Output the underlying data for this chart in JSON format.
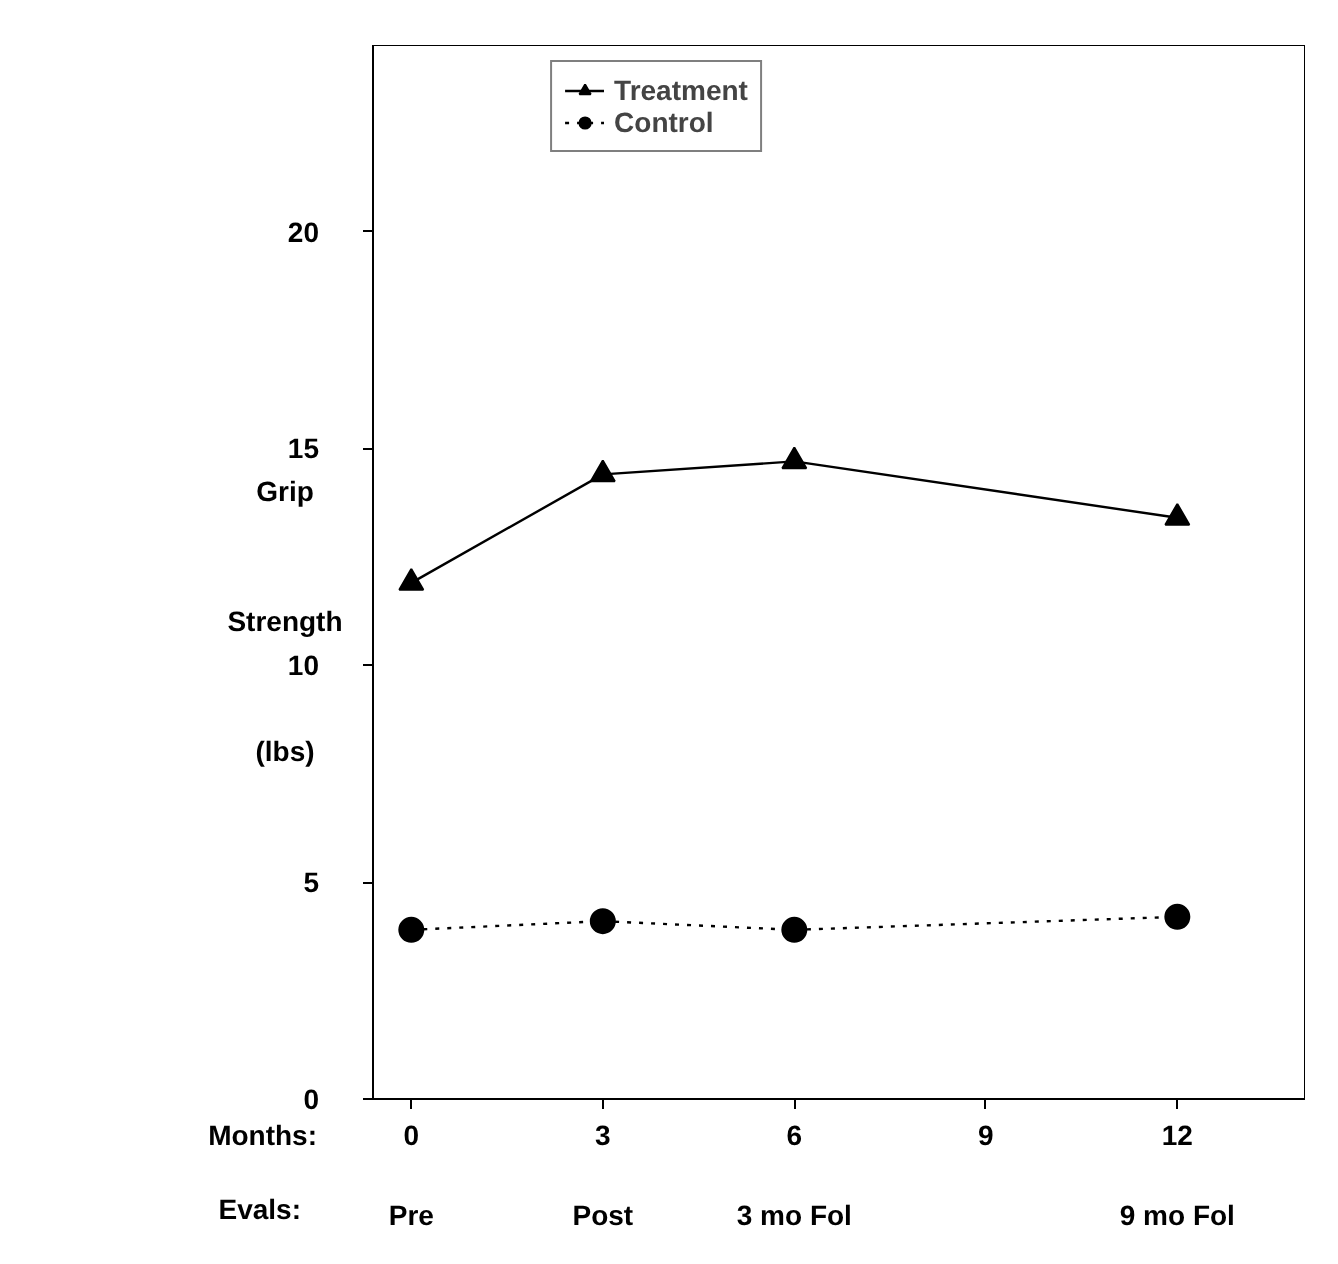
{
  "chart_data": {
    "type": "line",
    "xlabel": "Months:",
    "ylabel": "Grip Strength (lbs)",
    "x2label": "Evals:",
    "x": [
      0,
      3,
      6,
      12
    ],
    "series": [
      {
        "name": "Treatment",
        "color": "#000000",
        "values": [
          11.9,
          14.4,
          14.7,
          13.4
        ],
        "marker": "triangle",
        "line_style": "solid"
      },
      {
        "name": "Control",
        "color": "#000000",
        "values": [
          3.9,
          4.1,
          3.9,
          4.2
        ],
        "marker": "circle",
        "line_style": "dotted"
      }
    ],
    "xlim": [
      -0.6,
      14
    ],
    "xticks": [
      0,
      3,
      6,
      9,
      12
    ],
    "annotations": [
      "Pre",
      "Post",
      "3 mo Fol",
      "9 mo Fol"
    ],
    "ylim": [
      0,
      24.3
    ],
    "yticks": [
      0,
      5,
      10,
      15,
      20
    ],
    "grid": false,
    "legend": "top"
  }
}
